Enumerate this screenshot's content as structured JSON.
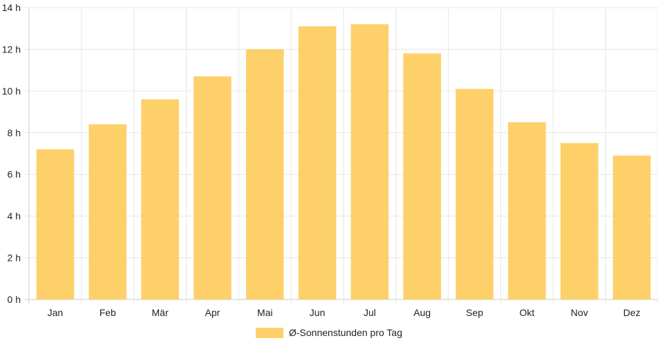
{
  "chart_data": {
    "type": "bar",
    "categories": [
      "Jan",
      "Feb",
      "Mär",
      "Apr",
      "Mai",
      "Jun",
      "Jul",
      "Aug",
      "Sep",
      "Okt",
      "Nov",
      "Dez"
    ],
    "series": [
      {
        "name": "Ø-Sonnenstunden pro Tag",
        "values": [
          7.2,
          8.4,
          9.6,
          10.7,
          12.0,
          13.1,
          13.2,
          11.8,
          10.1,
          8.5,
          7.5,
          6.9
        ],
        "color": "#fdd06a"
      }
    ],
    "y_ticks": [
      "0 h",
      "2 h",
      "4 h",
      "6 h",
      "8 h",
      "10 h",
      "12 h",
      "14 h"
    ],
    "ylim": [
      0,
      14
    ],
    "grid": true,
    "legend_position": "bottom",
    "title": "",
    "xlabel": "",
    "ylabel": ""
  }
}
